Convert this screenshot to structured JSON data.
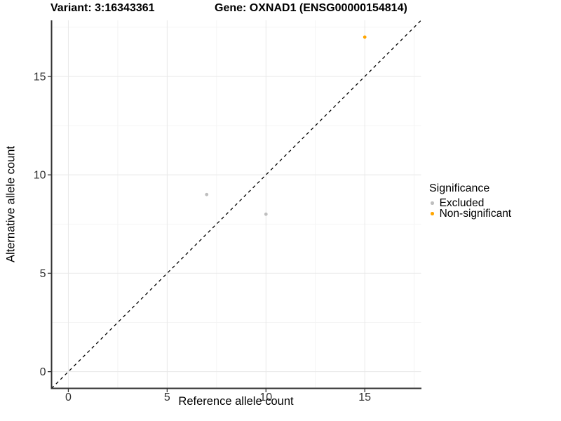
{
  "chart_data": {
    "type": "scatter",
    "titles": {
      "left": "Variant: 3:16343361",
      "right": "Gene: OXNAD1 (ENSG00000154814)"
    },
    "xlabel": "Reference allele count",
    "ylabel": "Alternative allele count",
    "xlim": [
      -0.85,
      17.85
    ],
    "ylim": [
      -0.85,
      17.85
    ],
    "xticks": [
      0,
      5,
      10,
      15
    ],
    "yticks": [
      0,
      5,
      10,
      15
    ],
    "xminor": [
      2.5,
      7.5,
      12.5,
      17.5
    ],
    "yminor": [
      2.5,
      7.5,
      12.5,
      17.5
    ],
    "grid": true,
    "legend": {
      "title": "Significance",
      "position": "right",
      "entries": [
        "Excluded",
        "Non-significant"
      ]
    },
    "series": [
      {
        "name": "Excluded",
        "color": "#BEBEBE",
        "points": [
          [
            7,
            9
          ],
          [
            10,
            8
          ]
        ]
      },
      {
        "name": "Non-significant",
        "color": "#FFA500",
        "points": [
          [
            15,
            17
          ]
        ]
      }
    ],
    "identity_line": {
      "style": "dashed",
      "color": "#000000",
      "from": [
        -0.85,
        -0.85
      ],
      "to": [
        17.85,
        17.85
      ]
    },
    "style": {
      "background": "#FFFFFF",
      "grid_major": "#E8E8E8",
      "grid_minor": "#F3F3F3",
      "axis_color": "#333333",
      "tick_label_color": "#303030",
      "point_radius": 2.4
    }
  }
}
